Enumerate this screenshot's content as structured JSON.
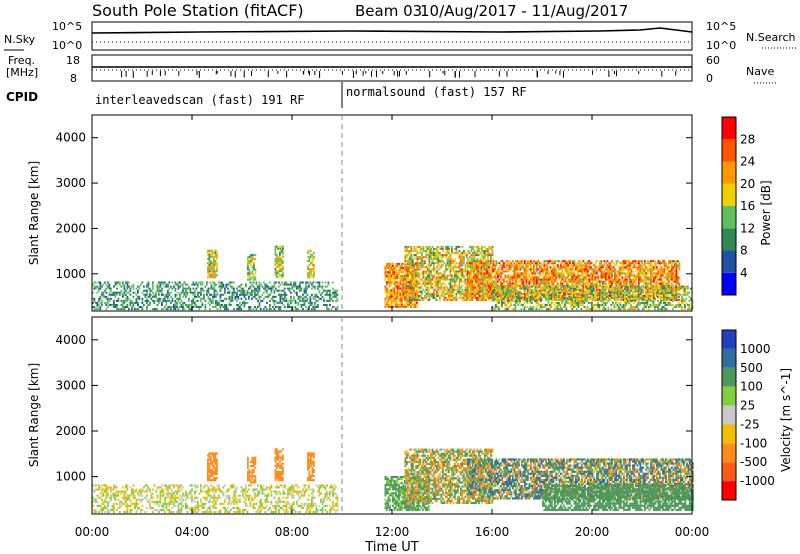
{
  "header": {
    "station": "South Pole Station (fitACF)",
    "beam": "Beam 03",
    "date_range": "10/Aug/2017 - 11/Aug/2017"
  },
  "top_panels": {
    "nsky_label": "N.Sky",
    "nsearch_label": "N.Search",
    "noise_ticks_left": [
      "10^5",
      "10^0"
    ],
    "noise_ticks_right": [
      "10^5",
      "10^0"
    ],
    "freq_label_line1": "Freq.",
    "freq_label_line2": "[MHz]",
    "freq_ticks": [
      "18",
      "8"
    ],
    "nave_label": "Nave",
    "nave_ticks": [
      "60",
      "0"
    ],
    "cpid_label": "CPID",
    "cpid_segments": [
      {
        "label": "interleavedscan (fast) 191 RF",
        "start_h": 0,
        "end_h": 10
      },
      {
        "label": "normalsound (fast) 157 RF",
        "start_h": 10,
        "end_h": 24
      }
    ]
  },
  "x_axis": {
    "label": "Time UT",
    "ticks": [
      "00:00",
      "04:00",
      "08:00",
      "12:00",
      "16:00",
      "20:00",
      "00:00"
    ],
    "range_hours": [
      0,
      24
    ]
  },
  "chart_data": [
    {
      "type": "heatmap",
      "name": "power",
      "ylabel": "Slant Range [km]",
      "yticks": [
        "1000",
        "2000",
        "3000",
        "4000"
      ],
      "ylim": [
        180,
        4500
      ],
      "colorbar": {
        "label": "Power [dB]",
        "ticks": [
          "4",
          "8",
          "12",
          "16",
          "20",
          "24",
          "28"
        ],
        "range": [
          0,
          30
        ],
        "colors": [
          "#0000ff",
          "#2050a0",
          "#2e8b57",
          "#60c060",
          "#f0d000",
          "#ff9900",
          "#ff5500",
          "#ff0000"
        ]
      },
      "regions": [
        {
          "t": [
            0.0,
            9.8
          ],
          "r": [
            200,
            800
          ],
          "vmin": 6,
          "vmax": 16,
          "density": 0.45
        },
        {
          "t": [
            4.6,
            5.0
          ],
          "r": [
            900,
            1500
          ],
          "vmin": 10,
          "vmax": 24,
          "density": 0.8
        },
        {
          "t": [
            6.2,
            6.5
          ],
          "r": [
            850,
            1400
          ],
          "vmin": 10,
          "vmax": 22,
          "density": 0.7
        },
        {
          "t": [
            7.3,
            7.6
          ],
          "r": [
            900,
            1600
          ],
          "vmin": 10,
          "vmax": 22,
          "density": 0.75
        },
        {
          "t": [
            8.6,
            8.9
          ],
          "r": [
            900,
            1500
          ],
          "vmin": 12,
          "vmax": 24,
          "density": 0.8
        },
        {
          "t": [
            11.7,
            13.0
          ],
          "r": [
            250,
            1200
          ],
          "vmin": 16,
          "vmax": 30,
          "density": 0.8
        },
        {
          "t": [
            12.5,
            16.0
          ],
          "r": [
            400,
            1600
          ],
          "vmin": 10,
          "vmax": 26,
          "density": 0.65
        },
        {
          "t": [
            15.0,
            23.5
          ],
          "r": [
            400,
            1300
          ],
          "vmin": 14,
          "vmax": 30,
          "density": 0.75
        },
        {
          "t": [
            16.0,
            24.0
          ],
          "r": [
            200,
            700
          ],
          "vmin": 8,
          "vmax": 22,
          "density": 0.55
        }
      ]
    },
    {
      "type": "heatmap",
      "name": "velocity",
      "ylabel": "Slant Range [km]",
      "yticks": [
        "1000",
        "2000",
        "3000",
        "4000"
      ],
      "ylim": [
        180,
        4500
      ],
      "colorbar": {
        "label": "Velocity [m s^-1]",
        "ticks": [
          "1000",
          "500",
          "100",
          "25",
          "-25",
          "-100",
          "-500",
          "-1000"
        ],
        "colors": [
          "#1f3fbf",
          "#2f6fa0",
          "#4c9a5a",
          "#7fcf3f",
          "#c8c8c8",
          "#f0c000",
          "#ff8c1a",
          "#ff5a1a",
          "#ff0000"
        ]
      },
      "regions": [
        {
          "t": [
            0.0,
            9.8
          ],
          "r": [
            200,
            800
          ],
          "vmin": -100,
          "vmax": 100,
          "density": 0.45
        },
        {
          "t": [
            4.6,
            5.0
          ],
          "r": [
            900,
            1500
          ],
          "vmin": -500,
          "vmax": -200,
          "density": 0.8
        },
        {
          "t": [
            6.2,
            6.5
          ],
          "r": [
            850,
            1400
          ],
          "vmin": -500,
          "vmax": -100,
          "density": 0.7
        },
        {
          "t": [
            7.3,
            7.6
          ],
          "r": [
            900,
            1600
          ],
          "vmin": -500,
          "vmax": -200,
          "density": 0.75
        },
        {
          "t": [
            8.6,
            8.9
          ],
          "r": [
            900,
            1500
          ],
          "vmin": -500,
          "vmax": -200,
          "density": 0.8
        },
        {
          "t": [
            11.7,
            13.5
          ],
          "r": [
            250,
            1000
          ],
          "vmin": 50,
          "vmax": 200,
          "density": 0.75
        },
        {
          "t": [
            12.5,
            16.0
          ],
          "r": [
            400,
            1600
          ],
          "vmin": -500,
          "vmax": 500,
          "density": 0.65
        },
        {
          "t": [
            15.0,
            24.0
          ],
          "r": [
            500,
            1400
          ],
          "vmin": -500,
          "vmax": 1000,
          "density": 0.75
        },
        {
          "t": [
            18.0,
            24.0
          ],
          "r": [
            250,
            800
          ],
          "vmin": 100,
          "vmax": 300,
          "density": 0.7
        }
      ]
    }
  ]
}
